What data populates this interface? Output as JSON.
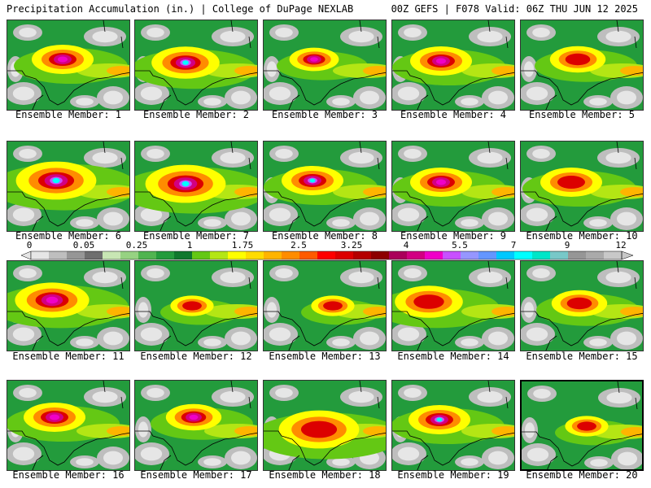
{
  "header": {
    "title": "Precipitation Accumulation (in.) | College of DuPage NEXLAB",
    "valid": "00Z GEFS | F078 Valid: 06Z THU JUN 12 2025"
  },
  "colorbar": {
    "labels": [
      "0",
      "0.05",
      "0.25",
      "1",
      "1.75",
      "2.5",
      "3.25",
      "4",
      "5.5",
      "7",
      "9",
      "12"
    ],
    "colors": [
      "#e6e6e6",
      "#bebebe",
      "#969696",
      "#6e6e6e",
      "#c8e6b4",
      "#96d282",
      "#50b450",
      "#239b3c",
      "#0f782d",
      "#64c814",
      "#b4e614",
      "#ffff00",
      "#ffdc00",
      "#ffb400",
      "#ff8c00",
      "#ff5a00",
      "#ff0000",
      "#dc0000",
      "#b40000",
      "#8c0000",
      "#aa005a",
      "#d20082",
      "#f000c8",
      "#c850ff",
      "#9696ff",
      "#6496ff",
      "#00c8ff",
      "#00ffff",
      "#00e6c8",
      "#78c8c8",
      "#969696",
      "#aaaaaa",
      "#c8c8c8"
    ]
  },
  "members": [
    {
      "caption": "Ensemble Member: 1"
    },
    {
      "caption": "Ensemble Member: 2"
    },
    {
      "caption": "Ensemble Member: 3"
    },
    {
      "caption": "Ensemble Member: 4"
    },
    {
      "caption": "Ensemble Member: 5"
    },
    {
      "caption": "Ensemble Member: 6"
    },
    {
      "caption": "Ensemble Member: 7"
    },
    {
      "caption": "Ensemble Member: 8"
    },
    {
      "caption": "Ensemble Member: 9"
    },
    {
      "caption": "Ensemble Member: 10"
    },
    {
      "caption": "Ensemble Member: 11"
    },
    {
      "caption": "Ensemble Member: 12"
    },
    {
      "caption": "Ensemble Member: 13"
    },
    {
      "caption": "Ensemble Member: 14"
    },
    {
      "caption": "Ensemble Member: 15"
    },
    {
      "caption": "Ensemble Member: 16"
    },
    {
      "caption": "Ensemble Member: 17"
    },
    {
      "caption": "Ensemble Member: 18"
    },
    {
      "caption": "Ensemble Member: 19"
    },
    {
      "caption": "Ensemble Member: 20"
    }
  ]
}
